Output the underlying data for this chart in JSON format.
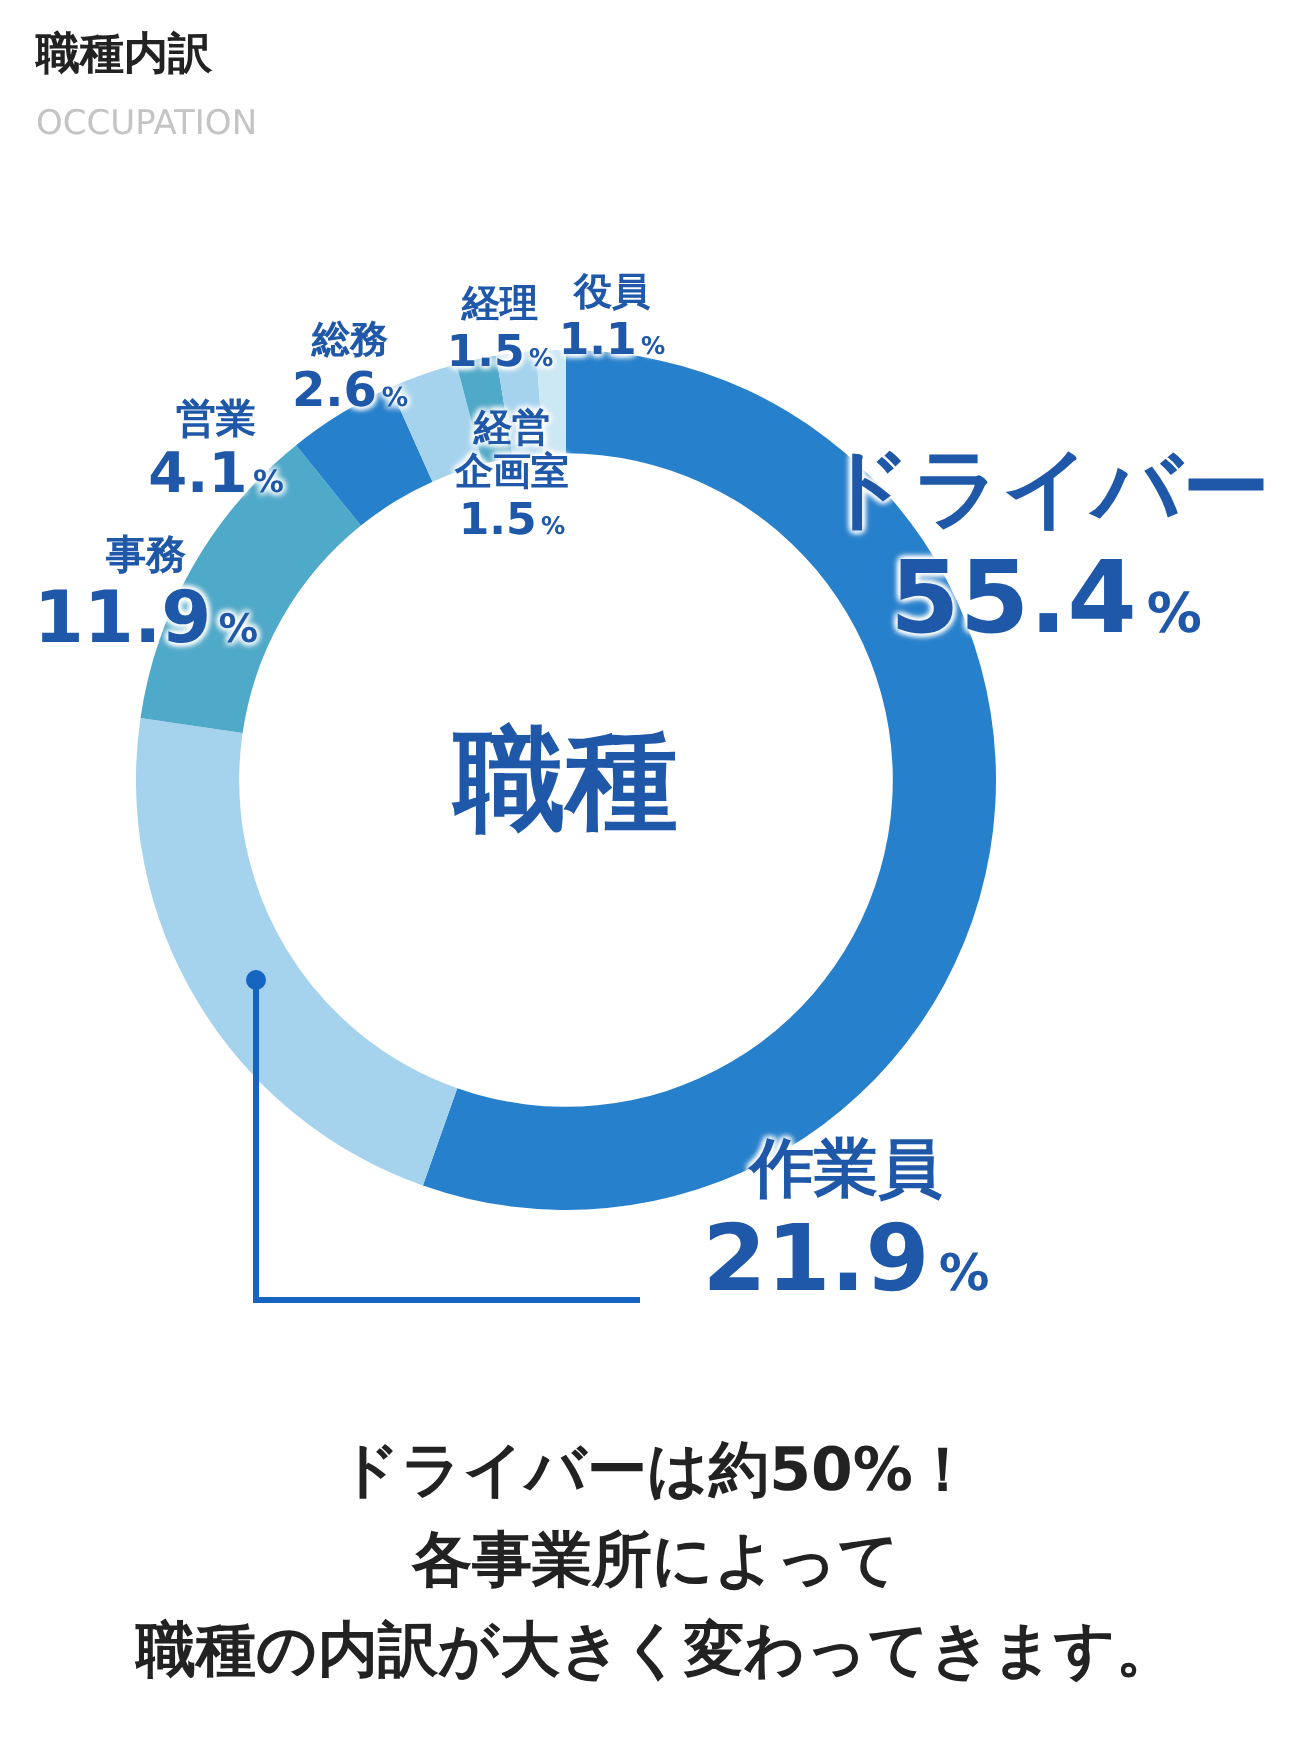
{
  "chart_data": {
    "type": "donut",
    "title": "職種内訳",
    "subtitle": "OCCUPATION",
    "categories": [
      "ドライバー",
      "作業員",
      "事務",
      "営業",
      "総務",
      "経理",
      "経営企画室",
      "役員"
    ],
    "values": [
      55.4,
      21.9,
      11.9,
      4.1,
      2.6,
      1.5,
      1.5,
      1.1
    ],
    "colors": [
      "#2680cc",
      "#a5d3ee",
      "#4fa9c9",
      "#2680cc",
      "#a5d3ee",
      "#4fa9c9",
      "#a5d3ee",
      "#cde8f5"
    ],
    "value_labels": [
      "55.4%",
      "21.9%",
      "11.9%",
      "4.1%",
      "2.6%",
      "1.5%",
      "1.5%",
      "1.1%"
    ],
    "legend": false,
    "annotations": [
      "職種",
      "ドライバーは約50%！",
      "各事業所によって",
      "職種の内訳が大きく変わってきます。"
    ]
  }
}
